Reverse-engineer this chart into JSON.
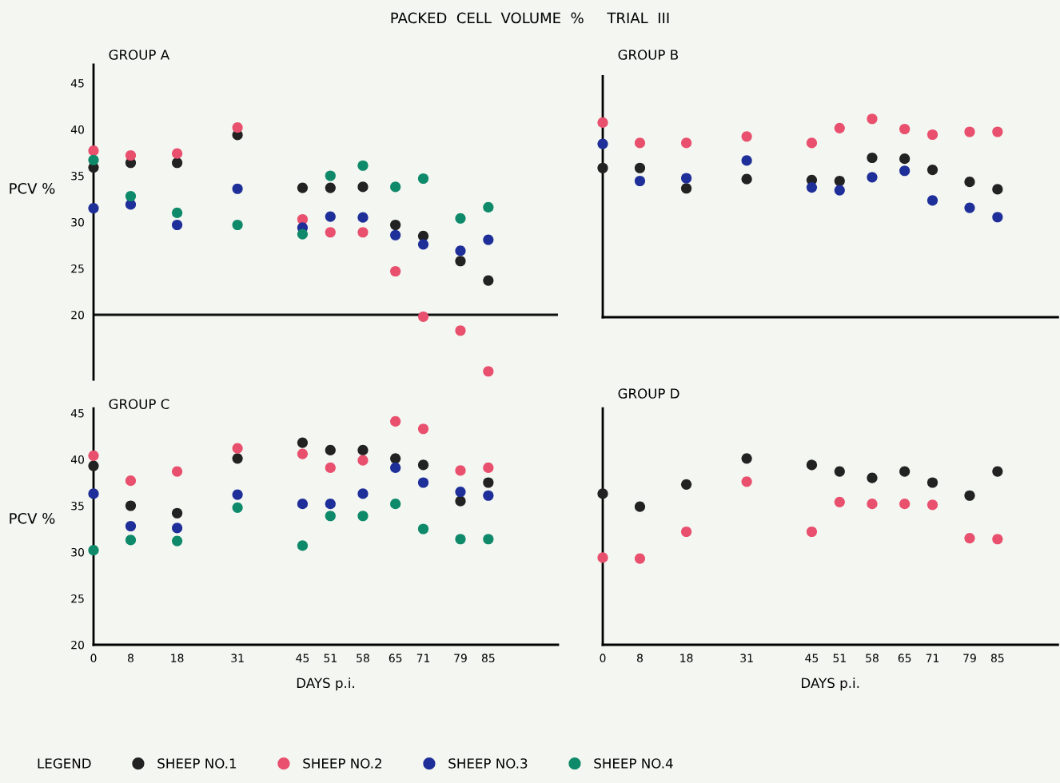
{
  "chart_data": [
    {
      "type": "scatter",
      "title": "GROUP A",
      "ylabel": "PCV %",
      "annotations": [
        "PACKED  CELL  VOLUME  %     TRIAL  III"
      ],
      "legend_title": "LEGEND",
      "legend": "bottom",
      "marker": "circle",
      "x": [
        0,
        8,
        18,
        31,
        45,
        51,
        58,
        65,
        71,
        79,
        85
      ],
      "xlim": [
        0,
        100
      ],
      "xticks": [
        0,
        8,
        18,
        31,
        45,
        51,
        58,
        65,
        71,
        79,
        85
      ],
      "ylim": [
        13,
        47
      ],
      "yticks": [
        20,
        25,
        30,
        35,
        40,
        45
      ],
      "tick_labels": "y",
      "ref_lines": [
        {
          "axis": "y",
          "value": 20,
          "color": "#111111"
        }
      ],
      "series": [
        {
          "name": "SHEEP NO.1",
          "color": "#222222",
          "values": [
            35.9,
            36.4,
            36.4,
            39.4,
            33.7,
            33.7,
            33.8,
            29.7,
            28.5,
            25.8,
            23.7
          ]
        },
        {
          "name": "SHEEP NO.2",
          "color": "#e8506e",
          "values": [
            37.7,
            37.2,
            37.4,
            40.2,
            30.3,
            28.9,
            28.9,
            24.7,
            19.8,
            18.3,
            13.9
          ]
        },
        {
          "name": "SHEEP NO.3",
          "color": "#1f2f9a",
          "values": [
            31.5,
            31.9,
            29.7,
            33.6,
            29.4,
            30.6,
            30.5,
            28.6,
            27.6,
            26.9,
            28.1
          ]
        },
        {
          "name": "SHEEP NO.4",
          "color": "#0e8a6a",
          "values": [
            36.7,
            32.8,
            31.0,
            29.7,
            28.7,
            35.0,
            36.1,
            33.8,
            34.7,
            30.4,
            31.6
          ]
        }
      ]
    },
    {
      "type": "scatter",
      "title": "GROUP B",
      "marker": "circle",
      "x": [
        0,
        8,
        18,
        31,
        45,
        51,
        58,
        65,
        71,
        79,
        85
      ],
      "xlim": [
        0,
        98
      ],
      "xticks": [
        0,
        8,
        18,
        31,
        45,
        51,
        58,
        65,
        71,
        79,
        85
      ],
      "ylim": [
        20,
        46
      ],
      "yticks": [
        20,
        25,
        30,
        35,
        40,
        45
      ],
      "tick_labels": false,
      "series": [
        {
          "color": "#222222",
          "values": [
            36.1,
            36.1,
            33.9,
            34.9,
            34.8,
            34.7,
            37.2,
            37.1,
            35.9,
            34.6,
            33.8
          ]
        },
        {
          "color": "#e8506e",
          "values": [
            41.0,
            38.8,
            38.8,
            39.5,
            38.8,
            40.4,
            41.4,
            40.3,
            39.7,
            40.0,
            40.0
          ]
        },
        {
          "color": "#1f2f9a",
          "values": [
            38.7,
            34.7,
            35.0,
            36.9,
            34.0,
            33.7,
            35.1,
            35.8,
            32.6,
            31.8,
            30.8
          ]
        }
      ]
    },
    {
      "type": "scatter",
      "title": "GROUP C",
      "ylabel": "PCV %",
      "xlabel": "DAYS p.i.",
      "marker": "circle",
      "x": [
        0,
        8,
        18,
        31,
        45,
        51,
        58,
        65,
        71,
        79,
        85
      ],
      "xlim": [
        0,
        100
      ],
      "xticks": [
        0,
        8,
        18,
        31,
        45,
        51,
        58,
        65,
        71,
        79,
        85
      ],
      "ylim": [
        20,
        45.5
      ],
      "yticks": [
        20,
        25,
        30,
        35,
        40,
        45
      ],
      "series": [
        {
          "color": "#222222",
          "values": [
            39.3,
            35.0,
            34.2,
            40.1,
            41.8,
            41.0,
            41.0,
            40.1,
            39.4,
            35.5,
            37.5
          ]
        },
        {
          "color": "#e8506e",
          "values": [
            40.4,
            37.7,
            38.7,
            41.2,
            40.6,
            39.1,
            39.9,
            44.1,
            43.3,
            38.8,
            39.1
          ]
        },
        {
          "color": "#1f2f9a",
          "values": [
            36.3,
            32.8,
            32.6,
            36.2,
            35.2,
            35.2,
            36.3,
            39.1,
            37.5,
            36.5,
            36.1
          ]
        },
        {
          "color": "#0e8a6a",
          "values": [
            30.2,
            31.3,
            31.2,
            34.8,
            30.7,
            33.9,
            33.9,
            35.2,
            32.5,
            31.4,
            31.4
          ]
        }
      ]
    },
    {
      "type": "scatter",
      "title": "GROUP D",
      "xlabel": "DAYS p.i.",
      "marker": "circle",
      "x": [
        0,
        8,
        18,
        31,
        45,
        51,
        58,
        65,
        71,
        79,
        85
      ],
      "xlim": [
        0,
        98
      ],
      "xticks": [
        0,
        8,
        18,
        31,
        45,
        51,
        58,
        65,
        71,
        79,
        85
      ],
      "ylim": [
        20,
        45.5
      ],
      "yticks": [
        20,
        25,
        30,
        35,
        40,
        45
      ],
      "tick_labels": "x",
      "series": [
        {
          "color": "#222222",
          "values": [
            36.3,
            34.9,
            37.3,
            40.1,
            39.4,
            38.7,
            38.0,
            38.7,
            37.5,
            36.1,
            38.7
          ]
        },
        {
          "color": "#e8506e",
          "values": [
            29.4,
            29.3,
            32.2,
            37.6,
            32.2,
            35.4,
            35.2,
            35.2,
            35.1,
            31.5,
            31.4
          ]
        }
      ]
    }
  ]
}
